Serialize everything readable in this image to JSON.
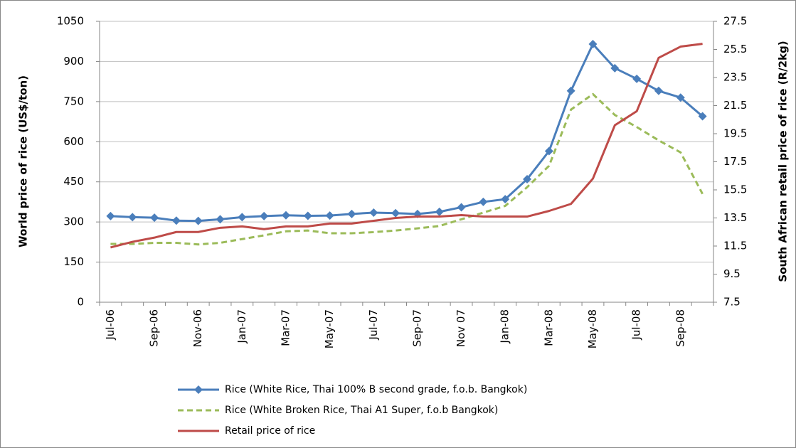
{
  "chart_data": {
    "type": "line",
    "ylabel": "World price of rice (US$/ton)",
    "y2label": "South African retail price of rice (R/2kg)",
    "categories": [
      "Jul-06",
      null,
      "Sep-06",
      null,
      "Nov-06",
      null,
      "Jan-07",
      null,
      "Mar-07",
      null,
      "May-07",
      null,
      "Jul-07",
      null,
      "Sep-07",
      null,
      "Nov 07",
      null,
      "Jan-08",
      null,
      "Mar-08",
      null,
      "May-08",
      null,
      "Jul-08",
      null,
      "Sep-08",
      null
    ],
    "series": [
      {
        "name": "Rice (White Rice, Thai 100% B second grade, f.o.b. Bangkok)",
        "color": "#4a7ebb",
        "marker": "diamond",
        "values": [
          322,
          318,
          316,
          305,
          304,
          310,
          318,
          322,
          325,
          323,
          324,
          330,
          335,
          333,
          330,
          338,
          355,
          375,
          385,
          460,
          565,
          790,
          965,
          875,
          835,
          790,
          765,
          695
        ]
      },
      {
        "name": "Rice (White Broken Rice, Thai A1 Super, f.o.b Bangkok)",
        "color": "#9bbb59",
        "line_style": "dashed",
        "values": [
          218,
          218,
          222,
          222,
          216,
          222,
          236,
          250,
          265,
          268,
          258,
          258,
          262,
          268,
          276,
          285,
          310,
          335,
          360,
          430,
          510,
          720,
          778,
          700,
          655,
          605,
          560,
          405
        ]
      },
      {
        "name": "Retail price of rice",
        "color": "#be4b48",
        "axis": "y2",
        "values": [
          11.4,
          11.8,
          12.1,
          12.5,
          12.5,
          12.8,
          12.9,
          12.7,
          12.9,
          12.9,
          13.1,
          13.1,
          13.3,
          13.5,
          13.6,
          13.6,
          13.7,
          13.6,
          13.6,
          13.6,
          14.0,
          14.5,
          16.3,
          20.1,
          21.1,
          24.9,
          25.7,
          25.9
        ]
      }
    ],
    "ylim": [
      0,
      1050
    ],
    "yticks": [
      0,
      150,
      300,
      450,
      600,
      750,
      900,
      1050
    ],
    "y2lim": [
      7.5,
      27.5
    ],
    "y2ticks": [
      7.5,
      9.5,
      11.5,
      13.5,
      15.5,
      17.5,
      19.5,
      21.5,
      23.5,
      25.5,
      27.5
    ],
    "grid": true,
    "legend": "bottom"
  }
}
